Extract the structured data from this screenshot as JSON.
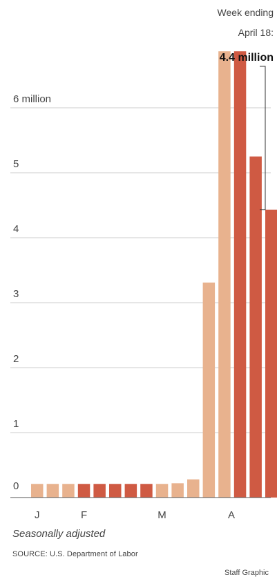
{
  "chart_data": {
    "type": "bar",
    "title": "",
    "xlabel": "",
    "ylabel": "",
    "ylim": [
      0,
      6.9
    ],
    "y_ticks": [
      0,
      1,
      2,
      3,
      4,
      5,
      6
    ],
    "y_tick_labels": [
      "0",
      "1",
      "2",
      "3",
      "4",
      "5",
      "6 million"
    ],
    "x_tick_labels": [
      "J",
      "F",
      "M",
      "A"
    ],
    "grid": true,
    "values": [
      0.21,
      0.21,
      0.21,
      0.21,
      0.21,
      0.21,
      0.21,
      0.21,
      0.21,
      0.22,
      0.28,
      3.31,
      6.87,
      6.87,
      5.25,
      4.43
    ],
    "shades": [
      "light",
      "light",
      "light",
      "dark",
      "dark",
      "dark",
      "dark",
      "dark",
      "light",
      "light",
      "light",
      "light",
      "light",
      "dark",
      "dark",
      "dark"
    ],
    "annotation": {
      "line1": "Week ending",
      "line2": "April 18:",
      "value": "4.4 million"
    }
  },
  "colors": {
    "light": "#e8b28e",
    "dark": "#cf5a43",
    "grid": "#cccccc",
    "axis": "#555555"
  },
  "footer": {
    "note": "Seasonally adjusted",
    "source": "SOURCE: U.S. Department of Labor",
    "credit": "Staff Graphic"
  }
}
